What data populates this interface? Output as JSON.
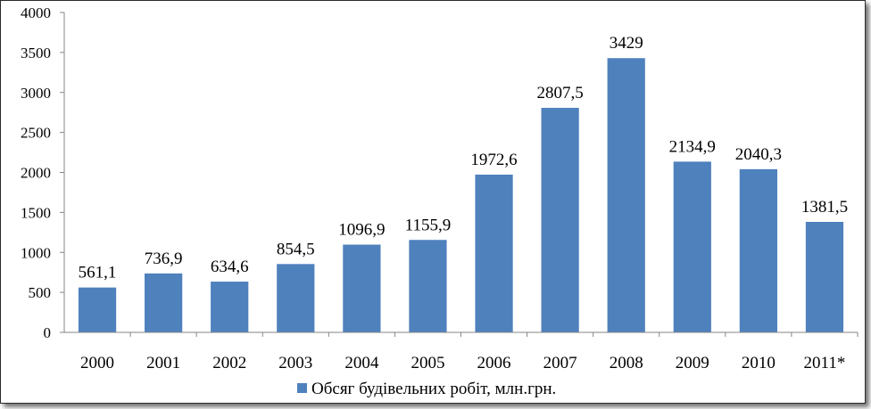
{
  "chart_data": {
    "type": "bar",
    "categories": [
      "2000",
      "2001",
      "2002",
      "2003",
      "2004",
      "2005",
      "2006",
      "2007",
      "2008",
      "2009",
      "2010",
      "2011*"
    ],
    "series": [
      {
        "name": "Обсяг будівельних робіт, млн.грн.",
        "values": [
          561.1,
          736.9,
          634.6,
          854.5,
          1096.9,
          1155.9,
          1972.6,
          2807.5,
          3429,
          2134.9,
          2040.3,
          1381.5
        ],
        "labels": [
          "561,1",
          "736,9",
          "634,6",
          "854,5",
          "1096,9",
          "1155,9",
          "1972,6",
          "2807,5",
          "3429",
          "2134,9",
          "2040,3",
          "1381,5"
        ]
      }
    ],
    "ylim": [
      0,
      4000
    ],
    "yticks": [
      0,
      500,
      1000,
      1500,
      2000,
      2500,
      3000,
      3500,
      4000
    ],
    "grid": false,
    "legend_position": "bottom",
    "title": "",
    "xlabel": "",
    "ylabel": ""
  },
  "colors": {
    "bar": "#4f81bd",
    "axis": "#868686"
  }
}
